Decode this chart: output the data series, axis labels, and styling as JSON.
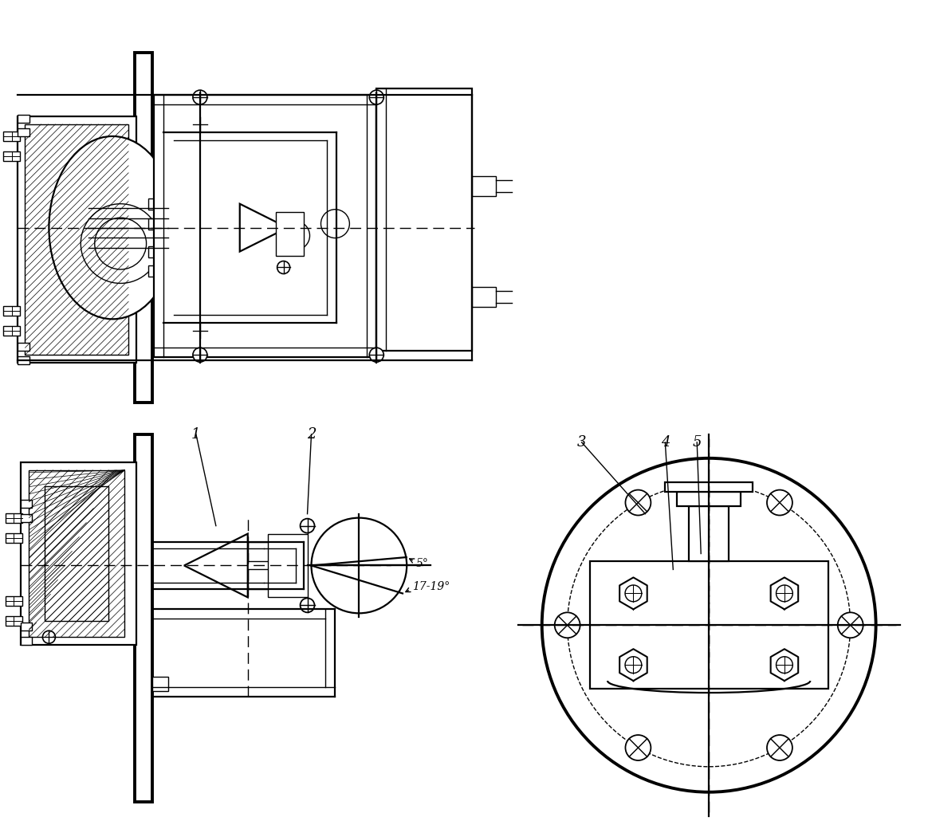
{
  "bg_color": "#ffffff",
  "line_color": "#000000",
  "label_1": "1",
  "label_2": "2",
  "label_3": "3",
  "label_4": "4",
  "label_5": "5",
  "angle_label": "17-19°",
  "angle_label2": "5°",
  "figsize": [
    11.64,
    10.35
  ],
  "dpi": 100,
  "lw_thick": 2.8,
  "lw_main": 1.6,
  "lw_thin": 1.0,
  "lw_dash": 1.0
}
